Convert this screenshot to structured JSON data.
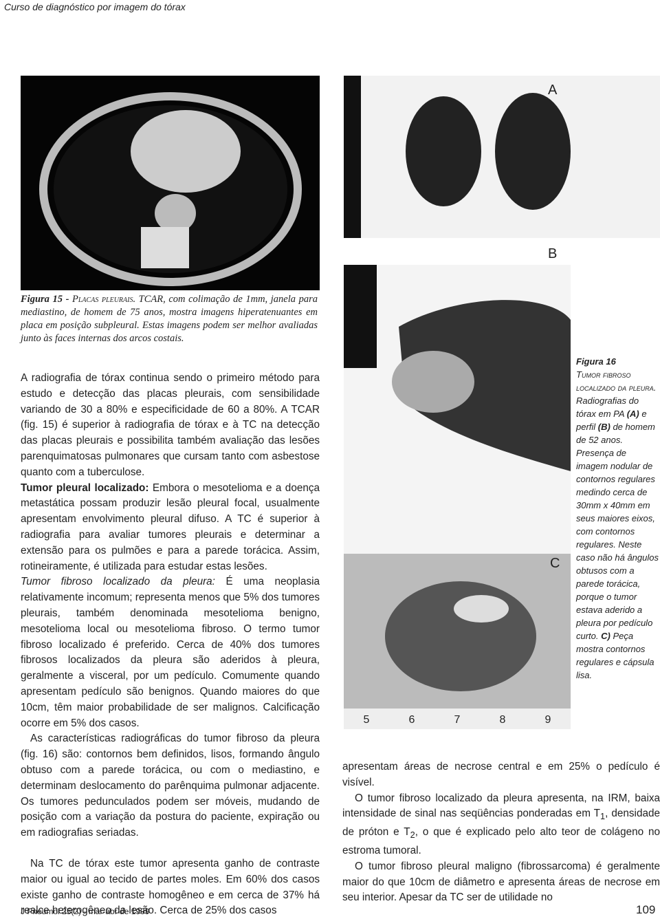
{
  "header": {
    "title": "Curso de diagnóstico por imagem do tórax"
  },
  "figure15": {
    "caption": [
      "Figura 15 - ",
      "Placas pleurais.",
      " TCAR, com colimação de 1mm, janela para mediastino, de homem de 75 anos, mostra imagens hiperatenuantes em placa em posição subpleural. Estas imagens podem ser melhor avaliadas junto às faces internas dos arcos costais."
    ]
  },
  "figure16": {
    "panel_labels": [
      "A",
      "B",
      "C"
    ],
    "ruler_labels": [
      "5",
      "6",
      "7",
      "8",
      "9"
    ],
    "caption": [
      "Figura 16",
      "Tumor fibroso localizado da pleura.",
      "Radiografias do tórax em PA ",
      "(A)",
      " e perfil ",
      "(B)",
      " de homem de 52 anos. Presença de imagem nodular de contornos regulares medindo cerca de 30mm x 40mm em seus maiores eixos, com contornos regulares. Neste caso não há ângulos obtusos com a parede torácica, porque o tumor estava aderido a pleura por pedículo curto. ",
      "C)",
      " Peça mostra contornos regulares e cápsula lisa."
    ]
  },
  "body": {
    "left": [
      {
        "text": "A radiografia de tórax continua sendo o primeiro método para estudo e detecção das placas pleurais, com sensibilidade variando de 30 a 80% e especificidade de 60 a 80%. A TCAR (fig. 15) é superior à radiografia de tórax e à TC na detecção das placas pleurais e possibilita também avaliação das lesões parenquimatosas pulmonares que cursam tanto com asbestose quanto com a tuberculose."
      },
      {
        "lead": "Tumor pleural localizado:",
        "text": " Embora o mesotelioma e a doença metastática possam produzir lesão pleural focal, usualmente apresentam envolvimento pleural difuso. A TC é superior à radiografia para avaliar tumores pleurais e determinar a extensão para os pulmões e para a parede torácica. Assim, rotineiramente, é utilizada para estudar estas lesões."
      },
      {
        "lead": "Tumor fibroso localizado da pleura:",
        "text": " É uma neoplasia relativamente incomum; representa menos que 5% dos tumores pleurais, também denominada mesotelioma benigno, mesotelioma local ou mesotelioma fibroso. O termo tumor fibroso localizado é preferido. Cerca de 40% dos tumores fibrosos localizados da pleura são aderidos à pleura, geralmente a visceral, por um pedículo. Comumente quando apresentam pedículo são benignos. Quando maiores do que 10cm, têm maior probabilidade de ser malignos. Calcificação ocorre em 5% dos casos."
      },
      {
        "text": "As características radiográficas do tumor fibroso da pleura (fig. 16) são: contornos bem definidos, lisos, formando ângulo obtuso com a parede torácica, ou com o mediastino, e determinam deslocamento do parênquima pulmonar adjacente. Os tumores pedunculados podem ser móveis, mudando de posição com a variação da postura do paciente, expiração ou em radiografias seriadas."
      },
      {
        "text": "Na TC de tórax este tumor apresenta ganho de contraste maior ou igual ao tecido de partes moles. Em 60% dos casos existe ganho de contraste homogêneo e em cerca de 37% há realce heterogêneo da lesão. Cerca de 25% dos casos"
      }
    ],
    "right": [
      {
        "text": "apresentam áreas de necrose central e em 25% o pedículo é visível."
      },
      {
        "parts": [
          "O tumor fibroso localizado da pleura apresenta, na IRM, baixa intensidade de sinal nas seqüências ponderadas em T",
          "1",
          ", densidade de próton e T",
          "2",
          ", o que é explicado pelo alto teor de colágeno no estroma tumoral."
        ]
      },
      {
        "text": "O tumor fibroso pleural maligno (fibrossarcoma) é geralmente maior do que 10cm de diâmetro e apresenta áreas de necrose em seu interior. Apesar da TC ser de utilidade no"
      }
    ]
  },
  "footer": {
    "journal": "J Pneumol 25(2) - mar-abr de 1999",
    "page": "109"
  }
}
